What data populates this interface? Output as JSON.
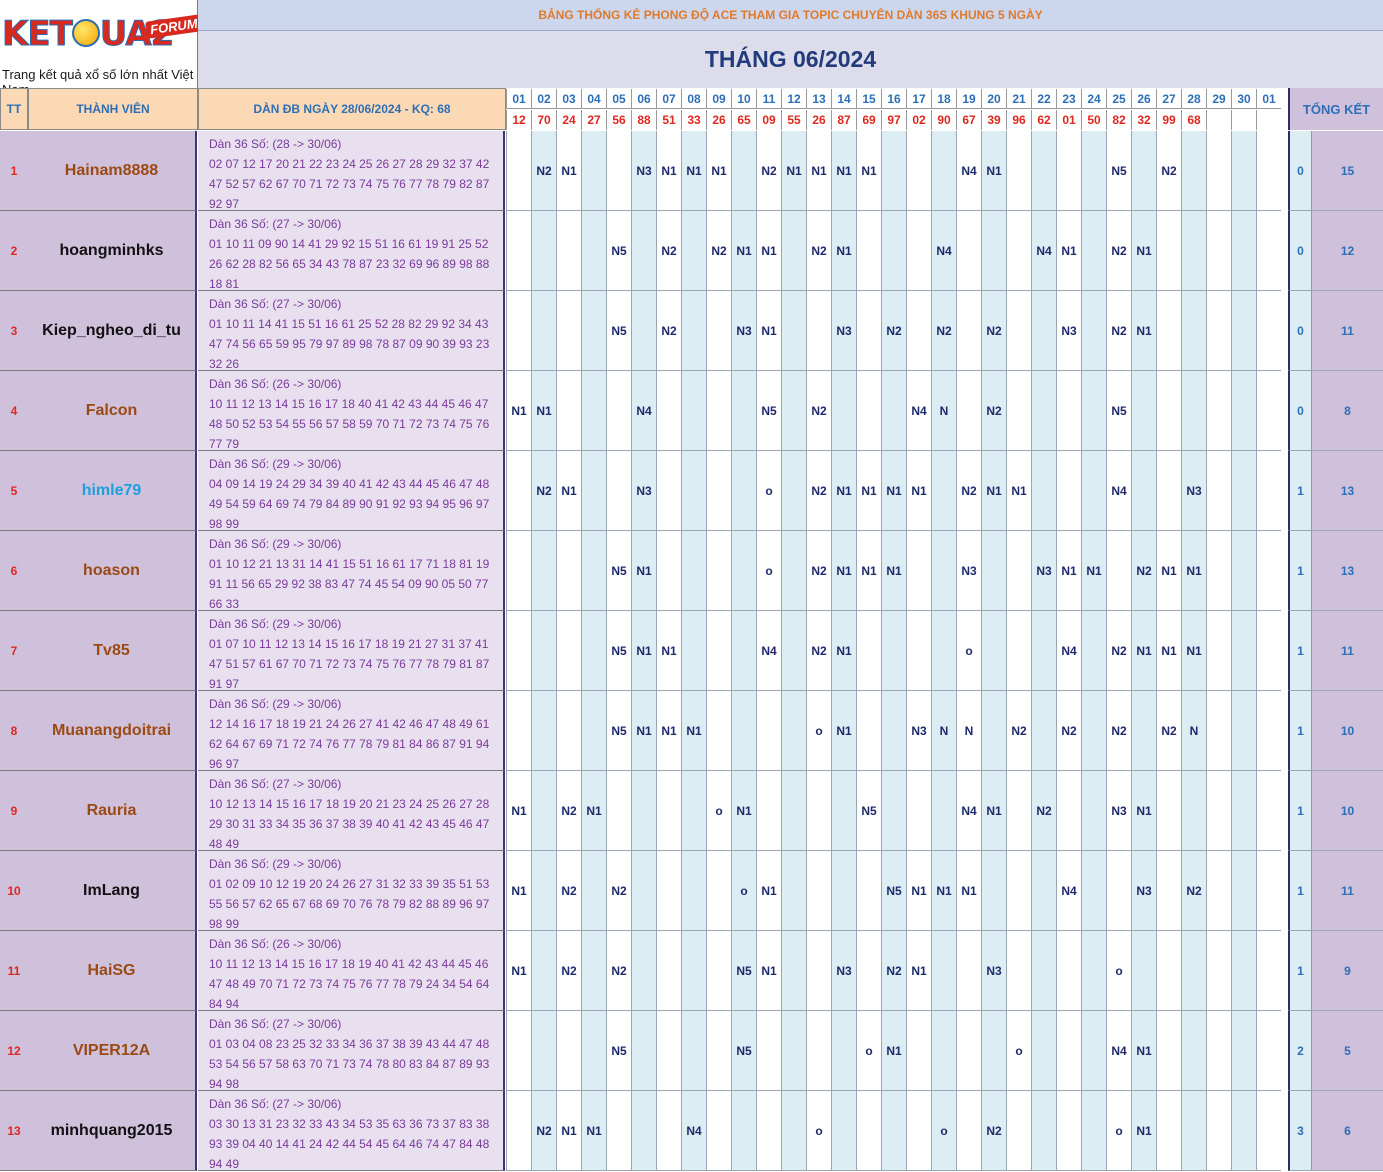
{
  "logo": {
    "word_pre": "KET",
    "word_post": "UA2",
    "forum": "FORUM",
    "tagline": "Trang kết quả xổ số lớn nhất Việt Nam"
  },
  "banner": "BẢNG THỐNG KÊ PHONG ĐỘ ACE THAM GIA TOPIC CHUYÊN DÀN 36S KHUNG 5 NGÀY",
  "month_title": "THÁNG 06/2024",
  "headers": {
    "tt": "TT",
    "member": "THÀNH VIÊN",
    "dan": "DÀN ĐB NGÀY 28/06/2024 - KQ: 68",
    "total": "TỔNG KẾT"
  },
  "days": [
    "01",
    "02",
    "03",
    "04",
    "05",
    "06",
    "07",
    "08",
    "09",
    "10",
    "11",
    "12",
    "13",
    "14",
    "15",
    "16",
    "17",
    "18",
    "19",
    "20",
    "21",
    "22",
    "23",
    "24",
    "25",
    "26",
    "27",
    "28",
    "29",
    "30",
    "01"
  ],
  "results": [
    "12",
    "70",
    "24",
    "27",
    "56",
    "88",
    "51",
    "33",
    "26",
    "65",
    "09",
    "55",
    "26",
    "87",
    "69",
    "97",
    "02",
    "90",
    "67",
    "39",
    "96",
    "62",
    "01",
    "50",
    "82",
    "32",
    "99",
    "68",
    "",
    "",
    ""
  ],
  "colors": {
    "name_brown": "#9c4a14",
    "name_black": "#111111",
    "name_blue": "#1fa0dc"
  },
  "rows": [
    {
      "tt": "1",
      "name": "Hainam8888",
      "name_color": "brown",
      "dan_title": "Dàn 36 Số: (28 -> 30/06)",
      "dan_nums": "02 07 12 17 20 21 22 23 24 25 26 27 28 29 32 37 42 47 52 57 62 67 70 71 72 73 74 75 76 77 78 79 82 87 92 97",
      "marks": [
        "",
        "N2",
        "N1",
        "",
        "",
        "N3",
        "N1",
        "N1",
        "N1",
        "",
        "N2",
        "N1",
        "N1",
        "N1",
        "N1",
        "",
        "",
        "",
        "N4",
        "N1",
        "",
        "",
        "",
        "",
        "N5",
        "",
        "N2",
        "",
        "",
        "",
        ""
      ],
      "score": "0",
      "total": "15"
    },
    {
      "tt": "2",
      "name": "hoangminhks",
      "name_color": "black",
      "dan_title": "Dàn 36 Số: (27 -> 30/06)",
      "dan_nums": "01 10 11 09 90 14 41 29 92 15 51 16 61 19 91 25 52 26 62 28 82 56 65 34 43 78 87 23 32 69 96 89 98 88 18 81",
      "marks": [
        "",
        "",
        "",
        "",
        "N5",
        "",
        "N2",
        "",
        "N2",
        "N1",
        "N1",
        "",
        "N2",
        "N1",
        "",
        "",
        "",
        "N4",
        "",
        "",
        "",
        "N4",
        "N1",
        "",
        "N2",
        "N1",
        "",
        "",
        "",
        "",
        ""
      ],
      "score": "0",
      "total": "12"
    },
    {
      "tt": "3",
      "name": "Kiep_ngheo_di_tu",
      "name_color": "black",
      "dan_title": "Dàn 36 Số: (27 -> 30/06)",
      "dan_nums": "01 10 11 14 41 15 51 16 61 25 52 28 82 29 92 34 43 47 74 56 65 59 95 79 97 89 98 78 87 09 90 39 93 23 32 26",
      "marks": [
        "",
        "",
        "",
        "",
        "N5",
        "",
        "N2",
        "",
        "",
        "N3",
        "N1",
        "",
        "",
        "N3",
        "",
        "N2",
        "",
        "N2",
        "",
        "N2",
        "",
        "",
        "N3",
        "",
        "N2",
        "N1",
        "",
        "",
        "",
        "",
        ""
      ],
      "score": "0",
      "total": "11"
    },
    {
      "tt": "4",
      "name": "Falcon",
      "name_color": "brown",
      "dan_title": "Dàn 36 Số: (26 -> 30/06)",
      "dan_nums": "10 11 12 13 14 15 16 17 18 40 41 42 43 44 45 46 47 48 50 52 53 54 55 56 57 58 59 70 71 72 73 74 75 76 77 79",
      "marks": [
        "N1",
        "N1",
        "",
        "",
        "",
        "N4",
        "",
        "",
        "",
        "",
        "N5",
        "",
        "N2",
        "",
        "",
        "",
        "N4",
        "N",
        "",
        "N2",
        "",
        "",
        "",
        "",
        "N5",
        "",
        "",
        "",
        "",
        "",
        ""
      ],
      "score": "0",
      "total": "8"
    },
    {
      "tt": "5",
      "name": "himle79",
      "name_color": "blue",
      "dan_title": "Dàn 36 Số: (29 -> 30/06)",
      "dan_nums": "04 09 14 19 24 29 34 39 40 41 42 43 44 45 46 47 48 49 54 59 64 69 74 79 84 89 90 91 92 93 94 95 96 97 98 99",
      "marks": [
        "",
        "N2",
        "N1",
        "",
        "",
        "N3",
        "",
        "",
        "",
        "",
        "o",
        "",
        "N2",
        "N1",
        "N1",
        "N1",
        "N1",
        "",
        "N2",
        "N1",
        "N1",
        "",
        "",
        "",
        "N4",
        "",
        "",
        "N3",
        "",
        "",
        ""
      ],
      "score": "1",
      "total": "13"
    },
    {
      "tt": "6",
      "name": "hoason",
      "name_color": "brown",
      "dan_title": "Dàn 36 Số: (29 -> 30/06)",
      "dan_nums": "01 10 12 21 13 31 14 41 15 51 16 61 17 71 18 81 19 91 11 56 65 29 92 38 83 47 74 45 54 09 90 05 50 77 66 33",
      "marks": [
        "",
        "",
        "",
        "",
        "N5",
        "N1",
        "",
        "",
        "",
        "",
        "o",
        "",
        "N2",
        "N1",
        "N1",
        "N1",
        "",
        "",
        "N3",
        "",
        "",
        "N3",
        "N1",
        "N1",
        "",
        "N2",
        "N1",
        "N1",
        "",
        "",
        ""
      ],
      "score": "1",
      "total": "13"
    },
    {
      "tt": "7",
      "name": "Tv85",
      "name_color": "brown",
      "dan_title": "Dàn 36 Số: (29 -> 30/06)",
      "dan_nums": "01 07 10 11 12 13 14 15 16 17 18 19 21 27 31 37 41 47 51 57 61 67 70 71 72 73 74 75 76 77 78 79 81 87 91 97",
      "marks": [
        "",
        "",
        "",
        "",
        "N5",
        "N1",
        "N1",
        "",
        "",
        "",
        "N4",
        "",
        "N2",
        "N1",
        "",
        "",
        "",
        "",
        "o",
        "",
        "",
        "",
        "N4",
        "",
        "N2",
        "N1",
        "N1",
        "N1",
        "",
        "",
        ""
      ],
      "score": "1",
      "total": "11"
    },
    {
      "tt": "8",
      "name": "Muanangdoitrai",
      "name_color": "brown",
      "dan_title": "Dàn 36 Số: (29 -> 30/06)",
      "dan_nums": "12 14 16 17 18 19 21 24 26 27 41 42 46 47 48 49 61 62 64 67 69 71 72 74 76 77 78 79 81 84 86 87 91 94 96 97",
      "marks": [
        "",
        "",
        "",
        "",
        "N5",
        "N1",
        "N1",
        "N1",
        "",
        "",
        "",
        "",
        "o",
        "N1",
        "",
        "",
        "N3",
        "N",
        "N",
        "",
        "N2",
        "",
        "N2",
        "",
        "N2",
        "",
        "N2",
        "N",
        "",
        "",
        ""
      ],
      "score": "1",
      "total": "10"
    },
    {
      "tt": "9",
      "name": "Rauria",
      "name_color": "brown",
      "dan_title": "Dàn 36 Số: (27 -> 30/06)",
      "dan_nums": "10 12 13 14 15 16 17 18 19 20 21 23 24 25 26 27 28 29 30 31 33 34 35 36 37 38 39 40 41 42 43 45 46 47 48 49",
      "marks": [
        "N1",
        "",
        "N2",
        "N1",
        "",
        "",
        "",
        "",
        "o",
        "N1",
        "",
        "",
        "",
        "",
        "N5",
        "",
        "",
        "",
        "N4",
        "N1",
        "",
        "N2",
        "",
        "",
        "N3",
        "N1",
        "",
        "",
        "",
        "",
        ""
      ],
      "score": "1",
      "total": "10"
    },
    {
      "tt": "10",
      "name": "ImLang",
      "name_color": "black",
      "dan_title": "Dàn 36 Số: (29 -> 30/06)",
      "dan_nums": "01 02 09 10 12 19 20 24 26 27 31 32 33 39 35 51 53 55 56 57 62 65 67 68 69 70 76 78 79 82 88 89 96 97 98 99",
      "marks": [
        "N1",
        "",
        "N2",
        "",
        "N2",
        "",
        "",
        "",
        "",
        "o",
        "N1",
        "",
        "",
        "",
        "",
        "N5",
        "N1",
        "N1",
        "N1",
        "",
        "",
        "",
        "N4",
        "",
        "",
        "N3",
        "",
        "N2",
        "",
        "",
        ""
      ],
      "score": "1",
      "total": "11"
    },
    {
      "tt": "11",
      "name": "HaiSG",
      "name_color": "brown",
      "dan_title": "Dàn 36 Số: (26 -> 30/06)",
      "dan_nums": "10 11 12 13 14 15 16 17 18 19 40 41 42 43 44 45 46 47 48 49 70 71 72 73 74 75 76 77 78 79 24 34 54 64 84 94",
      "marks": [
        "N1",
        "",
        "N2",
        "",
        "N2",
        "",
        "",
        "",
        "",
        "N5",
        "N1",
        "",
        "",
        "N3",
        "",
        "N2",
        "N1",
        "",
        "",
        "N3",
        "",
        "",
        "",
        "",
        "o",
        "",
        "",
        "",
        "",
        "",
        ""
      ],
      "score": "1",
      "total": "9"
    },
    {
      "tt": "12",
      "name": "VIPER12A",
      "name_color": "brown",
      "dan_title": "Dàn 36 Số: (27 -> 30/06)",
      "dan_nums": "01 03 04 08 23 25 32 33 34 36 37 38 39 43 44 47 48 53 54 56 57 58 63 70 71 73 74 78 80 83 84 87 89 93 94 98",
      "marks": [
        "",
        "",
        "",
        "",
        "N5",
        "",
        "",
        "",
        "",
        "N5",
        "",
        "",
        "",
        "",
        "o",
        "N1",
        "",
        "",
        "",
        "",
        "o",
        "",
        "",
        "",
        "N4",
        "N1",
        "",
        "",
        "",
        "",
        ""
      ],
      "score": "2",
      "total": "5"
    },
    {
      "tt": "13",
      "name": "minhquang2015",
      "name_color": "black",
      "dan_title": "Dàn 36 Số: (27 -> 30/06)",
      "dan_nums": "03 30 13 31 23 32 33 43 34 53 35 63 36 73 37 83 38 93 39 04 40 14 41 24 42 44 54 45 64 46 74 47 84 48 94 49",
      "marks": [
        "",
        "N2",
        "N1",
        "N1",
        "",
        "",
        "",
        "N4",
        "",
        "",
        "",
        "",
        "o",
        "",
        "",
        "",
        "",
        "o",
        "",
        "N2",
        "",
        "",
        "",
        "",
        "o",
        "N1",
        "",
        "",
        "",
        "",
        ""
      ],
      "score": "3",
      "total": "6"
    }
  ]
}
